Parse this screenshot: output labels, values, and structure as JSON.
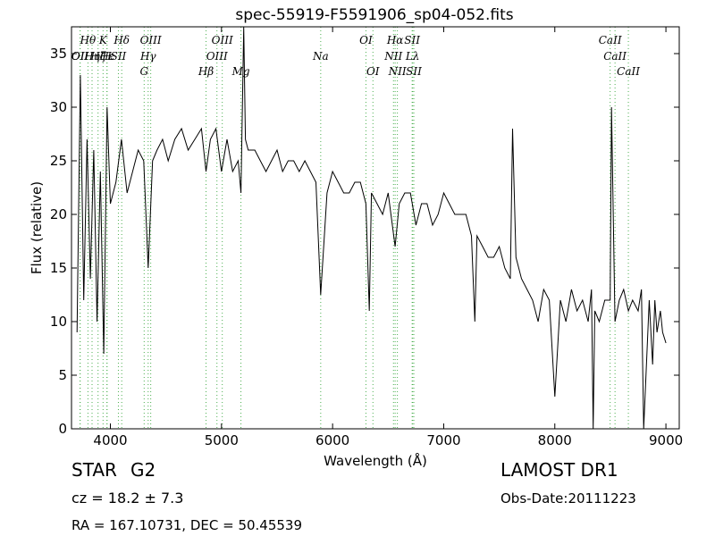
{
  "chart_data": {
    "type": "line",
    "title": "spec-55919-F5591906_sp04-052.fits",
    "xlabel": "Wavelength (Å)",
    "ylabel": "Flux (relative)",
    "xlim": [
      3650,
      9120
    ],
    "ylim": [
      0,
      37.5
    ],
    "xticks": [
      4000,
      5000,
      6000,
      7000,
      8000,
      9000
    ],
    "yticks": [
      0,
      5,
      10,
      15,
      20,
      25,
      30,
      35
    ],
    "grid": false,
    "series": [
      {
        "color": "#000000",
        "x": [
          3700,
          3730,
          3760,
          3790,
          3820,
          3850,
          3880,
          3910,
          3940,
          3970,
          4000,
          4050,
          4100,
          4150,
          4200,
          4250,
          4300,
          4340,
          4380,
          4420,
          4470,
          4520,
          4580,
          4640,
          4700,
          4760,
          4820,
          4861,
          4900,
          4950,
          5000,
          5050,
          5100,
          5150,
          5175,
          5200,
          5215,
          5240,
          5300,
          5350,
          5400,
          5450,
          5500,
          5550,
          5600,
          5650,
          5700,
          5750,
          5800,
          5850,
          5893,
          5950,
          6000,
          6050,
          6100,
          6150,
          6200,
          6250,
          6300,
          6330,
          6350,
          6400,
          6450,
          6500,
          6563,
          6600,
          6650,
          6700,
          6750,
          6800,
          6850,
          6900,
          6950,
          7000,
          7050,
          7100,
          7150,
          7200,
          7250,
          7280,
          7300,
          7350,
          7400,
          7450,
          7500,
          7550,
          7600,
          7620,
          7650,
          7700,
          7750,
          7800,
          7850,
          7900,
          7950,
          8000,
          8050,
          8100,
          8150,
          8200,
          8250,
          8300,
          8330,
          8345,
          8360,
          8400,
          8450,
          8498,
          8510,
          8542,
          8580,
          8620,
          8662,
          8700,
          8750,
          8780,
          8800,
          8850,
          8880,
          8900,
          8920,
          8950,
          8970,
          9000
        ],
        "y": [
          9,
          33,
          12,
          27,
          14,
          26,
          10,
          24,
          7,
          30,
          21,
          23,
          27,
          22,
          24,
          26,
          25,
          15,
          25,
          26,
          27,
          25,
          27,
          28,
          26,
          27,
          28,
          24,
          27,
          28,
          24,
          27,
          24,
          25,
          22,
          38,
          27,
          26,
          26,
          25,
          24,
          25,
          26,
          24,
          25,
          25,
          24,
          25,
          24,
          23,
          12.5,
          22,
          24,
          23,
          22,
          22,
          23,
          23,
          21,
          11,
          22,
          21,
          20,
          22,
          17,
          21,
          22,
          22,
          19,
          21,
          21,
          19,
          20,
          22,
          21,
          20,
          20,
          20,
          18,
          10,
          18,
          17,
          16,
          16,
          17,
          15,
          14,
          28,
          16,
          14,
          13,
          12,
          10,
          13,
          12,
          3,
          12,
          10,
          13,
          11,
          12,
          10,
          13,
          0,
          11,
          10,
          12,
          12,
          30,
          10,
          12,
          13,
          11,
          12,
          11,
          13,
          0,
          12,
          6,
          12,
          9,
          11,
          9,
          8
        ]
      }
    ],
    "line_markers": [
      {
        "x": 3727,
        "label": "OII",
        "row": 2
      },
      {
        "x": 3728,
        "label": "OII",
        "row": 3
      },
      {
        "x": 3798,
        "label": "Hθ",
        "row": 1
      },
      {
        "x": 3835,
        "label": "Hη",
        "row": 3
      },
      {
        "x": 3889,
        "label": "Hζ",
        "row": 2
      },
      {
        "x": 3934,
        "label": "K",
        "row": 1
      },
      {
        "x": 3969,
        "label": "H",
        "row": 3
      },
      {
        "x": 3970,
        "label": "Hε",
        "row": 2
      },
      {
        "x": 4072,
        "label": "SII",
        "row": 2
      },
      {
        "x": 4102,
        "label": "Hδ",
        "row": 1
      },
      {
        "x": 4304,
        "label": "G",
        "row": 4
      },
      {
        "x": 4340,
        "label": "Hγ",
        "row": 3
      },
      {
        "x": 4363,
        "label": "OIII",
        "row": 1
      },
      {
        "x": 4861,
        "label": "Hβ",
        "row": 4
      },
      {
        "x": 4959,
        "label": "OIII",
        "row": 3
      },
      {
        "x": 5007,
        "label": "OIII",
        "row": 1
      },
      {
        "x": 5175,
        "label": "Mg",
        "row": 4
      },
      {
        "x": 5893,
        "label": "Na",
        "row": 3
      },
      {
        "x": 6300,
        "label": "OI",
        "row": 1
      },
      {
        "x": 6363,
        "label": "OI",
        "row": 4
      },
      {
        "x": 6548,
        "label": "NII",
        "row": 3
      },
      {
        "x": 6563,
        "label": "Hα",
        "row": 1
      },
      {
        "x": 6583,
        "label": "NII",
        "row": 4
      },
      {
        "x": 6716,
        "label": "SII",
        "row": 1
      },
      {
        "x": 6720,
        "label": "Lλ",
        "row": 3
      },
      {
        "x": 6731,
        "label": "SII",
        "row": 4
      },
      {
        "x": 8498,
        "label": "CaII",
        "row": 1
      },
      {
        "x": 8542,
        "label": "CaII",
        "row": 2
      },
      {
        "x": 8662,
        "label": "CaII",
        "row": 4
      }
    ],
    "marker_color": "#4caf50"
  },
  "info": {
    "object_type": "STAR",
    "object_class": "G2",
    "survey": "LAMOST DR1",
    "cz_text": "cz = 18.2  ± 7.3",
    "obs_date": "Obs-Date:20111223",
    "radec": "RA = 167.10731, DEC = 50.45539"
  }
}
